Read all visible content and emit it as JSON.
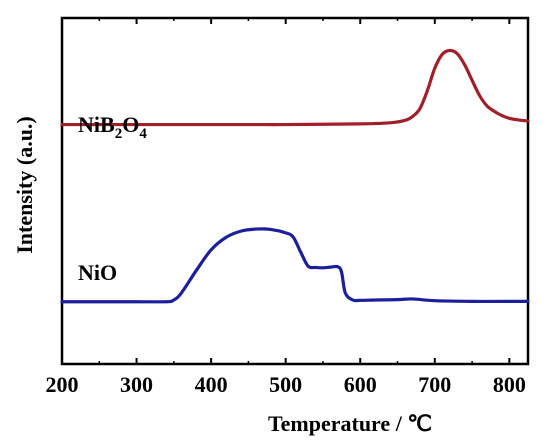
{
  "chart_data": {
    "type": "line",
    "title": "",
    "xlabel": "Temperature / ℃",
    "ylabel": "Intensity (a.u.)",
    "xlim": [
      200,
      825
    ],
    "ylim": [
      0,
      1
    ],
    "grid": false,
    "legend": "none",
    "x_ticks": [
      200,
      300,
      400,
      500,
      600,
      700,
      800
    ],
    "y_ticks_shown": false,
    "series": [
      {
        "name": "NiB2O4",
        "label_main": "NiB",
        "label_sub1": "2",
        "label_mid": "O",
        "label_sub2": "4",
        "color": "#a01f2a",
        "x": [
          200,
          250,
          300,
          350,
          400,
          450,
          500,
          550,
          600,
          620,
          640,
          660,
          670,
          680,
          690,
          700,
          710,
          720,
          730,
          740,
          750,
          760,
          770,
          780,
          790,
          800,
          810,
          825
        ],
        "y": [
          0.692,
          0.692,
          0.692,
          0.692,
          0.692,
          0.692,
          0.692,
          0.693,
          0.694,
          0.695,
          0.697,
          0.704,
          0.715,
          0.738,
          0.79,
          0.855,
          0.895,
          0.906,
          0.897,
          0.865,
          0.82,
          0.776,
          0.746,
          0.73,
          0.718,
          0.71,
          0.706,
          0.702
        ]
      },
      {
        "name": "NiO",
        "label": "NiO",
        "color": "#1c1f9a",
        "x": [
          200,
          250,
          300,
          340,
          350,
          360,
          380,
          400,
          420,
          440,
          460,
          480,
          500,
          510,
          520,
          530,
          540,
          550,
          560,
          570,
          575,
          580,
          590,
          600,
          620,
          650,
          670,
          700,
          750,
          800,
          825
        ],
        "y": [
          0.18,
          0.18,
          0.18,
          0.18,
          0.185,
          0.205,
          0.27,
          0.33,
          0.366,
          0.384,
          0.39,
          0.389,
          0.379,
          0.367,
          0.324,
          0.283,
          0.279,
          0.278,
          0.28,
          0.281,
          0.265,
          0.205,
          0.185,
          0.184,
          0.185,
          0.186,
          0.188,
          0.183,
          0.181,
          0.181,
          0.181
        ]
      }
    ]
  }
}
